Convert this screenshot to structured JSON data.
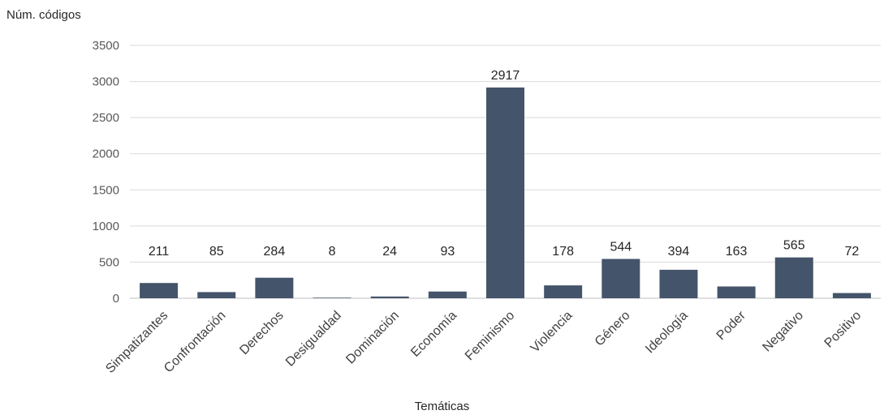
{
  "chart_data": {
    "type": "bar",
    "ylabel": "Núm. códigos",
    "xlabel": "Temáticas",
    "ylim": [
      0,
      3500
    ],
    "yticks": [
      0,
      500,
      1000,
      1500,
      2000,
      2500,
      3000,
      3500
    ],
    "grid": true,
    "bar_color": "#44546a",
    "categories": [
      "Simpatizantes",
      "Confrontación",
      "Derechos",
      "Desigualdad",
      "Dominación",
      "Economía",
      "Feminismo",
      "Violencia",
      "Género",
      "Ideología",
      "Poder",
      "Negativo",
      "Positivo"
    ],
    "values": [
      211,
      85,
      284,
      8,
      24,
      93,
      2917,
      178,
      544,
      394,
      163,
      565,
      72
    ]
  }
}
